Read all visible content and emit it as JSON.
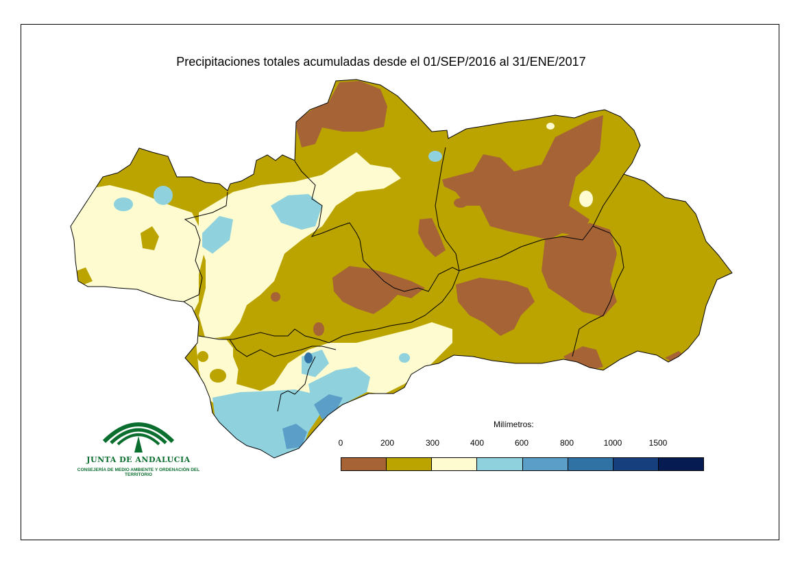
{
  "title": "Precipitaciones totales acumuladas desde el 01/SEP/2016 al 31/ENE/2017",
  "logo": {
    "name": "JUNTA DE ANDALUCIA",
    "subtitle": "CONSEJERÍA DE MEDIO AMBIENTE Y ORDENACIÓN DEL TERRITORIO"
  },
  "legend": {
    "title": "Milímetros:",
    "ticks": [
      "0",
      "200",
      "300",
      "400",
      "600",
      "800",
      "1000",
      "1500"
    ],
    "colors": [
      "#a56336",
      "#bba400",
      "#fdfbcf",
      "#8fd2de",
      "#5b9fc8",
      "#2f72a3",
      "#163f7d",
      "#061b52"
    ]
  },
  "colors": {
    "brown": "#a56336",
    "olive": "#bba400",
    "cream": "#fdfbcf",
    "lightblue": "#8fd2de",
    "midblue": "#5b9fc8",
    "blue": "#2f72a3",
    "logo_green": "#0a6e2e"
  }
}
